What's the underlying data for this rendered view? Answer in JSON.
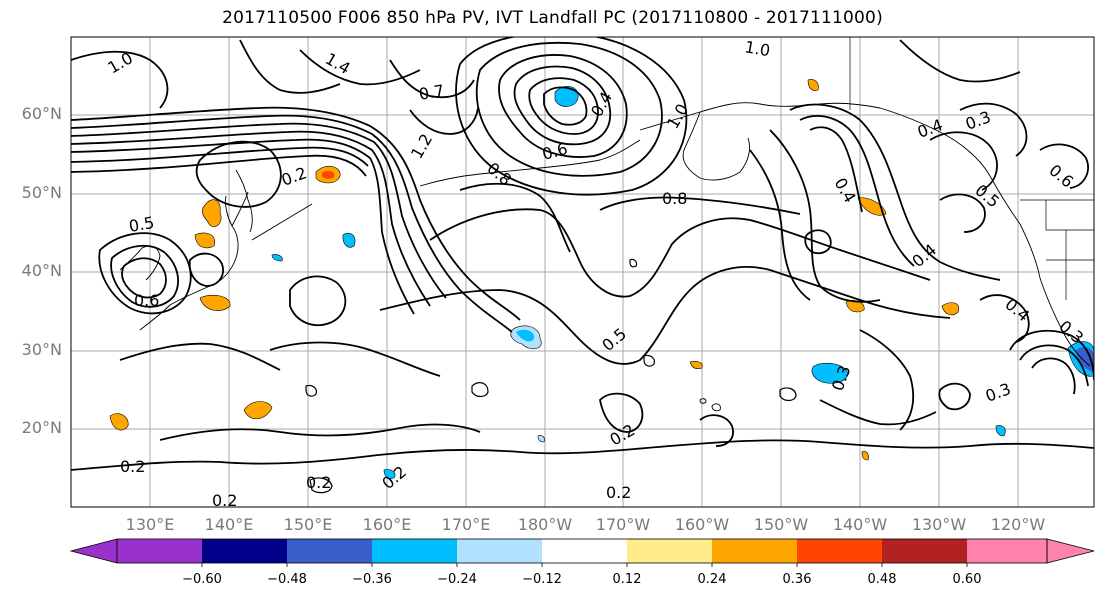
{
  "title": "2017110500 F006 850 hPa PV, IVT Landfall PC (2017110800 - 2017111000)",
  "map": {
    "lat_ticks": [
      "60°N",
      "50°N",
      "40°N",
      "30°N",
      "20°N"
    ],
    "lon_ticks": [
      "130°E",
      "140°E",
      "150°E",
      "160°E",
      "170°E",
      "180°W",
      "170°W",
      "160°W",
      "150°W",
      "140°W",
      "130°W",
      "120°W"
    ],
    "contour_labels": [
      "1.0",
      "1.4",
      "1.0",
      "0.4",
      "0.8",
      "0.6",
      "0.8",
      "0.7",
      "1.2",
      "0.2",
      "0.5",
      "0.6",
      "0.4",
      "0.4",
      "0.5",
      "0.6",
      "0.3",
      "0.3",
      "0.5",
      "0.2",
      "0.2",
      "0.2",
      "0.2",
      "0.2",
      "0.3",
      "0.4",
      "1.0",
      "0.4",
      "0.3",
      "0.2"
    ],
    "fill_colors": {
      "positive_low": "#ffa500",
      "positive_mid": "#ff4500",
      "negative_low": "#00bfff",
      "negative_mid": "#3a5fcd"
    },
    "contour_color": "#000000",
    "gridlines": true
  },
  "colorbar": {
    "colors": [
      "#9932cc",
      "#00008b",
      "#3a5fcd",
      "#00bfff",
      "#b0e2ff",
      "#ffffff",
      "#ffec8b",
      "#ffa500",
      "#ff4500",
      "#b22222",
      "#ff82ab"
    ],
    "tick_labels": [
      "−0.60",
      "−0.48",
      "−0.36",
      "−0.24",
      "−0.12",
      "0.12",
      "0.24",
      "0.36",
      "0.48",
      "0.60"
    ],
    "extend": "both"
  }
}
